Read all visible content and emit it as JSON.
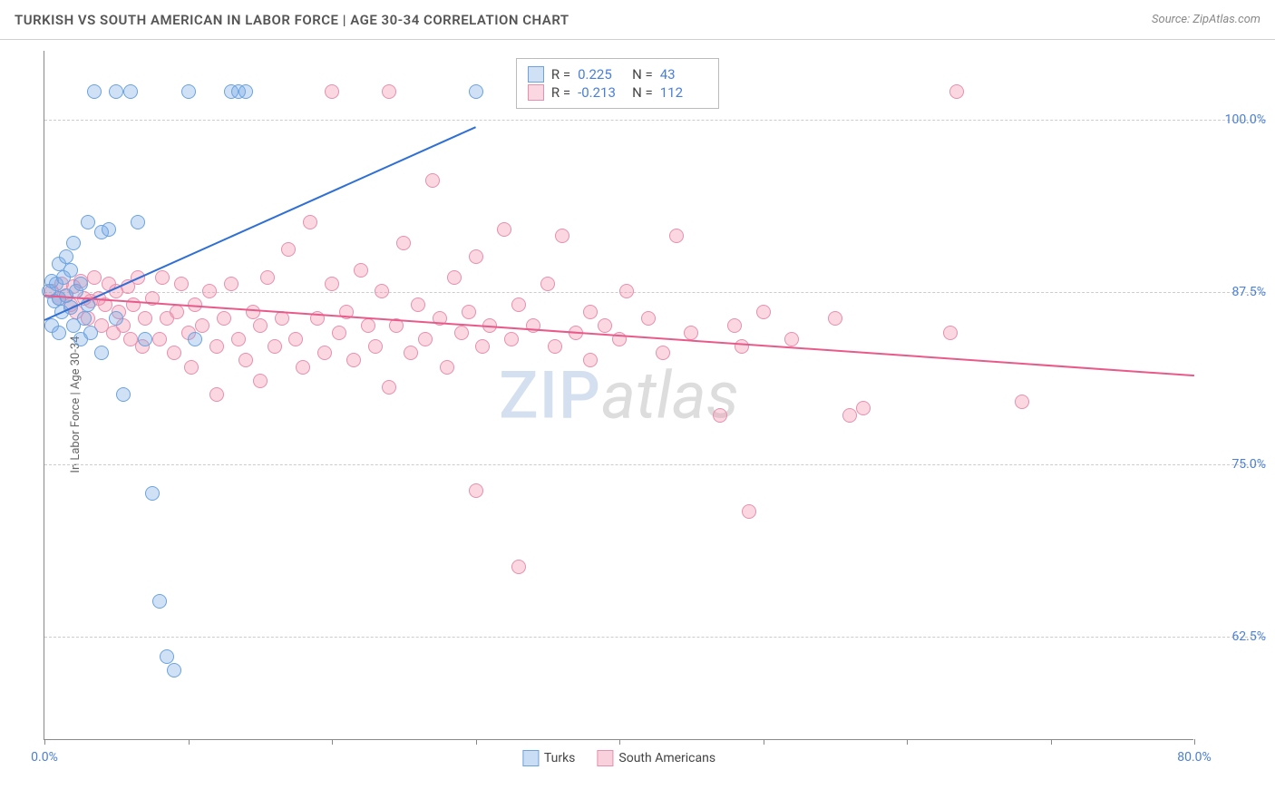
{
  "header": {
    "title": "TURKISH VS SOUTH AMERICAN IN LABOR FORCE | AGE 30-34 CORRELATION CHART",
    "source": "Source: ZipAtlas.com"
  },
  "ylabel": "In Labor Force | Age 30-34",
  "watermark": {
    "left": "ZIP",
    "right": "atlas"
  },
  "chart": {
    "type": "scatter",
    "plot_bg": "#ffffff",
    "grid_color": "#cccccc",
    "axis_color": "#888888",
    "xlim": [
      0,
      80
    ],
    "ylim": [
      55,
      105
    ],
    "xticks": [
      0,
      10,
      20,
      30,
      40,
      50,
      60,
      70,
      80
    ],
    "xtick_labels": {
      "0": "0.0%",
      "80": "80.0%"
    },
    "yticks": [
      62.5,
      75.0,
      87.5,
      100.0
    ],
    "ytick_labels": [
      "62.5%",
      "75.0%",
      "87.5%",
      "100.0%"
    ],
    "marker_radius": 8,
    "marker_border_width": 1.5,
    "series": [
      {
        "name": "Turks",
        "fill": "rgba(120,170,230,0.35)",
        "stroke": "#6aa3e0",
        "trend_color": "#2e6fd6",
        "trend": {
          "x1": 0,
          "y1": 85.5,
          "x2": 30,
          "y2": 99.5
        },
        "R": "0.225",
        "N": "43",
        "points": [
          [
            0.3,
            87.5
          ],
          [
            0.5,
            88.2
          ],
          [
            0.7,
            86.8
          ],
          [
            0.8,
            88.0
          ],
          [
            1.0,
            87.0
          ],
          [
            1.0,
            89.5
          ],
          [
            1.2,
            86.0
          ],
          [
            1.3,
            88.5
          ],
          [
            1.5,
            90.0
          ],
          [
            1.5,
            87.2
          ],
          [
            1.8,
            86.3
          ],
          [
            2.0,
            85.0
          ],
          [
            2.0,
            91.0
          ],
          [
            2.2,
            87.5
          ],
          [
            2.5,
            84.0
          ],
          [
            2.5,
            88.0
          ],
          [
            3.0,
            92.5
          ],
          [
            3.0,
            86.5
          ],
          [
            3.2,
            84.5
          ],
          [
            3.5,
            102.0
          ],
          [
            4.0,
            91.8
          ],
          [
            4.0,
            83.0
          ],
          [
            4.5,
            92.0
          ],
          [
            5.0,
            102.0
          ],
          [
            5.0,
            85.5
          ],
          [
            5.5,
            80.0
          ],
          [
            6.0,
            102.0
          ],
          [
            6.5,
            92.5
          ],
          [
            7.0,
            84.0
          ],
          [
            7.5,
            72.8
          ],
          [
            8.0,
            65.0
          ],
          [
            8.5,
            61.0
          ],
          [
            9.0,
            60.0
          ],
          [
            10.0,
            102.0
          ],
          [
            10.5,
            84.0
          ],
          [
            13.0,
            102.0
          ],
          [
            13.5,
            102.0
          ],
          [
            14.0,
            102.0
          ],
          [
            30.0,
            102.0
          ],
          [
            0.5,
            85.0
          ],
          [
            1.0,
            84.5
          ],
          [
            1.8,
            89.0
          ],
          [
            2.8,
            85.5
          ]
        ]
      },
      {
        "name": "South Americans",
        "fill": "rgba(240,140,170,0.35)",
        "stroke": "#e88fae",
        "trend_color": "#e85a8a",
        "trend": {
          "x1": 0,
          "y1": 87.3,
          "x2": 80,
          "y2": 81.5
        },
        "R": "-0.213",
        "N": "112",
        "points": [
          [
            0.5,
            87.5
          ],
          [
            1.0,
            87.0
          ],
          [
            1.2,
            88.0
          ],
          [
            1.5,
            87.2
          ],
          [
            1.8,
            86.5
          ],
          [
            2.0,
            87.8
          ],
          [
            2.2,
            86.0
          ],
          [
            2.5,
            88.2
          ],
          [
            2.8,
            87.0
          ],
          [
            3.0,
            85.5
          ],
          [
            3.2,
            86.8
          ],
          [
            3.5,
            88.5
          ],
          [
            3.8,
            87.0
          ],
          [
            4.0,
            85.0
          ],
          [
            4.2,
            86.5
          ],
          [
            4.5,
            88.0
          ],
          [
            4.8,
            84.5
          ],
          [
            5.0,
            87.5
          ],
          [
            5.2,
            86.0
          ],
          [
            5.5,
            85.0
          ],
          [
            5.8,
            87.8
          ],
          [
            6.0,
            84.0
          ],
          [
            6.2,
            86.5
          ],
          [
            6.5,
            88.5
          ],
          [
            6.8,
            83.5
          ],
          [
            7.0,
            85.5
          ],
          [
            7.5,
            87.0
          ],
          [
            8.0,
            84.0
          ],
          [
            8.2,
            88.5
          ],
          [
            8.5,
            85.5
          ],
          [
            9.0,
            83.0
          ],
          [
            9.2,
            86.0
          ],
          [
            9.5,
            88.0
          ],
          [
            10.0,
            84.5
          ],
          [
            10.2,
            82.0
          ],
          [
            10.5,
            86.5
          ],
          [
            11.0,
            85.0
          ],
          [
            11.5,
            87.5
          ],
          [
            12.0,
            83.5
          ],
          [
            12.0,
            80.0
          ],
          [
            12.5,
            85.5
          ],
          [
            13.0,
            88.0
          ],
          [
            13.5,
            84.0
          ],
          [
            14.0,
            82.5
          ],
          [
            14.5,
            86.0
          ],
          [
            15.0,
            85.0
          ],
          [
            15.0,
            81.0
          ],
          [
            15.5,
            88.5
          ],
          [
            16.0,
            83.5
          ],
          [
            16.5,
            85.5
          ],
          [
            17.0,
            90.5
          ],
          [
            17.5,
            84.0
          ],
          [
            18.0,
            82.0
          ],
          [
            18.5,
            92.5
          ],
          [
            19.0,
            85.5
          ],
          [
            19.5,
            83.0
          ],
          [
            20.0,
            88.0
          ],
          [
            20.0,
            102.0
          ],
          [
            20.5,
            84.5
          ],
          [
            21.0,
            86.0
          ],
          [
            21.5,
            82.5
          ],
          [
            22.0,
            89.0
          ],
          [
            22.5,
            85.0
          ],
          [
            23.0,
            83.5
          ],
          [
            23.5,
            87.5
          ],
          [
            24.0,
            80.5
          ],
          [
            24.0,
            102.0
          ],
          [
            24.5,
            85.0
          ],
          [
            25.0,
            91.0
          ],
          [
            25.5,
            83.0
          ],
          [
            26.0,
            86.5
          ],
          [
            26.5,
            84.0
          ],
          [
            27.0,
            95.5
          ],
          [
            27.5,
            85.5
          ],
          [
            28.0,
            82.0
          ],
          [
            28.5,
            88.5
          ],
          [
            29.0,
            84.5
          ],
          [
            29.5,
            86.0
          ],
          [
            30.0,
            90.0
          ],
          [
            30.0,
            73.0
          ],
          [
            30.5,
            83.5
          ],
          [
            31.0,
            85.0
          ],
          [
            32.0,
            92.0
          ],
          [
            32.5,
            84.0
          ],
          [
            33.0,
            86.5
          ],
          [
            33.0,
            67.5
          ],
          [
            34.0,
            85.0
          ],
          [
            35.0,
            88.0
          ],
          [
            35.5,
            83.5
          ],
          [
            36.0,
            91.5
          ],
          [
            37.0,
            84.5
          ],
          [
            38.0,
            86.0
          ],
          [
            38.0,
            82.5
          ],
          [
            39.0,
            85.0
          ],
          [
            40.0,
            84.0
          ],
          [
            40.5,
            87.5
          ],
          [
            42.0,
            85.5
          ],
          [
            43.0,
            83.0
          ],
          [
            44.0,
            91.5
          ],
          [
            45.0,
            84.5
          ],
          [
            47.0,
            78.5
          ],
          [
            48.0,
            85.0
          ],
          [
            48.5,
            83.5
          ],
          [
            49.0,
            71.5
          ],
          [
            50.0,
            86.0
          ],
          [
            52.0,
            84.0
          ],
          [
            55.0,
            85.5
          ],
          [
            56.0,
            78.5
          ],
          [
            57.0,
            79.0
          ],
          [
            63.0,
            84.5
          ],
          [
            63.5,
            102.0
          ],
          [
            68.0,
            79.5
          ]
        ]
      }
    ],
    "legend": [
      {
        "label": "Turks",
        "fill": "rgba(120,170,230,0.4)",
        "stroke": "#6aa3e0"
      },
      {
        "label": "South Americans",
        "fill": "rgba(240,140,170,0.4)",
        "stroke": "#e88fae"
      }
    ],
    "stats_box": {
      "left_pct": 41,
      "top_pct": 1
    }
  }
}
